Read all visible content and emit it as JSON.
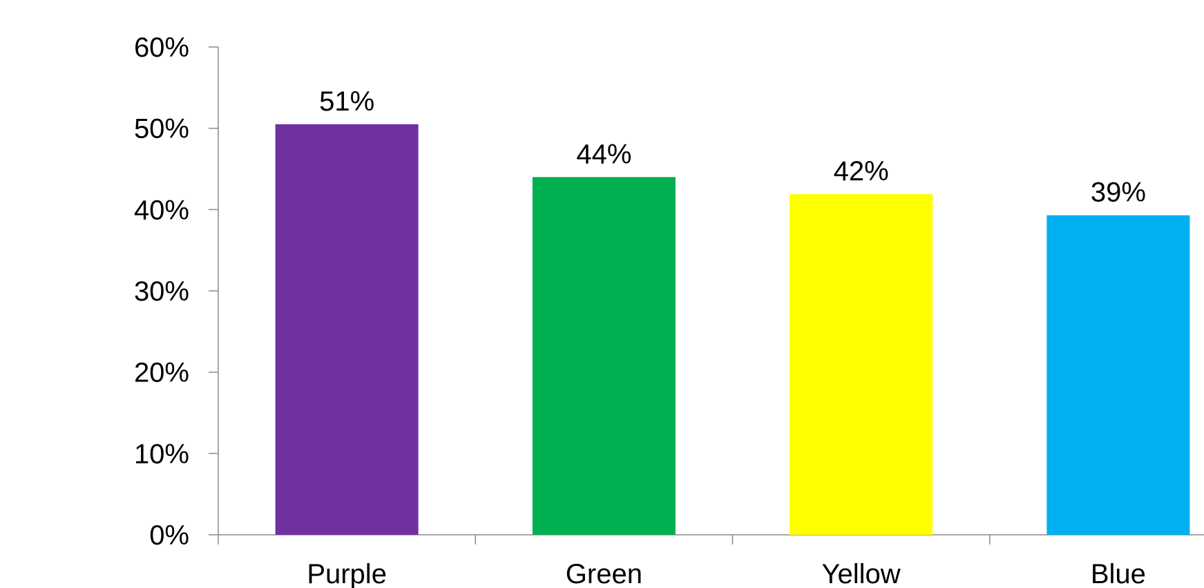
{
  "chart_data": {
    "type": "bar",
    "categories": [
      "Purple",
      "Green",
      "Yellow",
      "Blue"
    ],
    "values": [
      50.5,
      44.0,
      41.9,
      39.3
    ],
    "data_labels": [
      "51%",
      "44%",
      "42%",
      "39%"
    ],
    "colors": [
      "#7030A0",
      "#00B050",
      "#FFFF00",
      "#00B0F0"
    ],
    "y_ticks": [
      0,
      10,
      20,
      30,
      40,
      50,
      60
    ],
    "y_tick_labels": [
      "0%",
      "10%",
      "20%",
      "30%",
      "40%",
      "50%",
      "60%"
    ],
    "ylim": [
      0,
      60
    ],
    "grid": false,
    "legend": "none",
    "axis_color": "#898989"
  }
}
